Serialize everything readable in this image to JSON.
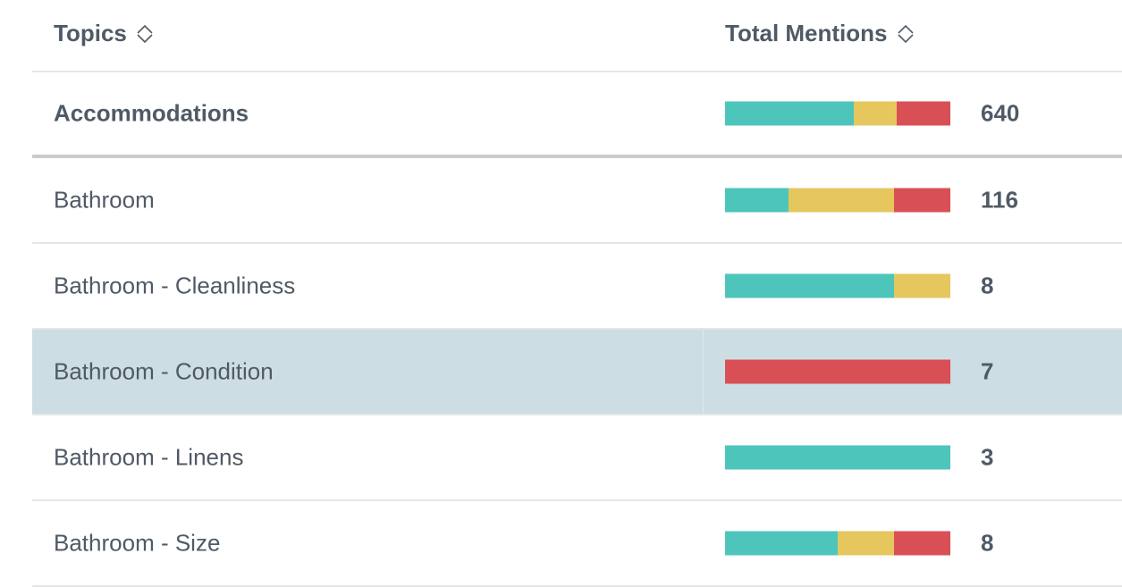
{
  "columns": {
    "topics": "Topics",
    "mentions": "Total Mentions"
  },
  "colors": {
    "positive": "#4ec5bb",
    "neutral": "#e6c75e",
    "negative": "#d94f56",
    "selected_row": "#cddde4"
  },
  "rows": [
    {
      "topic": "Accommodations",
      "count": "640",
      "share": {
        "positive": 0.57,
        "neutral": 0.19,
        "negative": 0.24
      }
    },
    {
      "topic": "Bathroom",
      "count": "116",
      "share": {
        "positive": 0.28,
        "neutral": 0.47,
        "negative": 0.25
      }
    },
    {
      "topic": "Bathroom - Cleanliness",
      "count": "8",
      "share": {
        "positive": 0.75,
        "neutral": 0.25,
        "negative": 0
      }
    },
    {
      "topic": "Bathroom - Condition",
      "count": "7",
      "share": {
        "positive": 0,
        "neutral": 0,
        "negative": 1
      }
    },
    {
      "topic": "Bathroom - Linens",
      "count": "3",
      "share": {
        "positive": 1,
        "neutral": 0,
        "negative": 0
      }
    },
    {
      "topic": "Bathroom - Size",
      "count": "8",
      "share": {
        "positive": 0.5,
        "neutral": 0.25,
        "negative": 0.25
      }
    }
  ],
  "icons": {
    "sort": "sort-icon"
  }
}
